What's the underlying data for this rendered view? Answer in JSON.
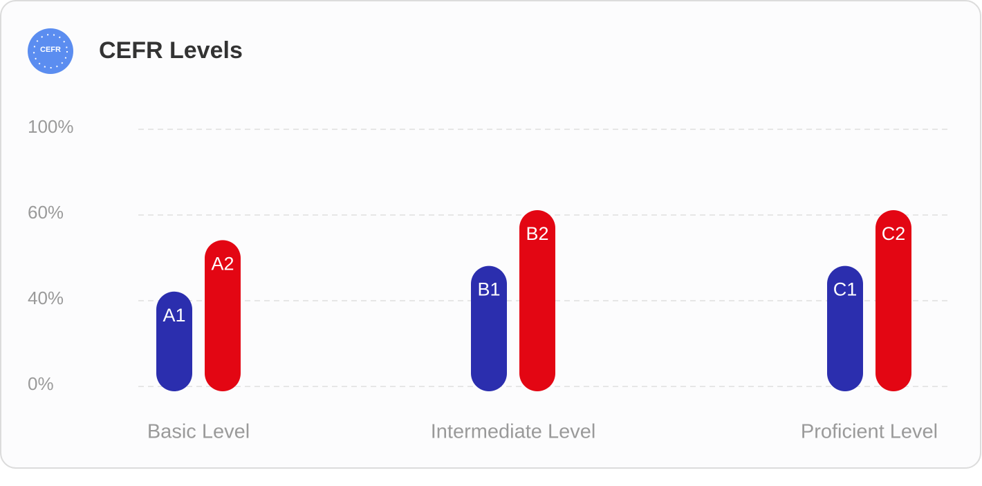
{
  "logo": {
    "text": "CEFR"
  },
  "chart_data": {
    "type": "bar",
    "title": "CEFR Levels",
    "categories": [
      "Basic Level",
      "Intermediate Level",
      "Proficient Level"
    ],
    "series": [
      {
        "color": "#2b2eae",
        "values": [
          41,
          47,
          47
        ],
        "labels": [
          "A1",
          "B1",
          "C1"
        ]
      },
      {
        "color": "#e30613",
        "values": [
          53,
          60,
          60
        ],
        "labels": [
          "A2",
          "B2",
          "C2"
        ]
      }
    ],
    "ylim": [
      0,
      100
    ],
    "yticks": [
      {
        "value": 0,
        "label": "0%"
      },
      {
        "value": 40,
        "label": "40%"
      },
      {
        "value": 60,
        "label": "60%"
      },
      {
        "value": 100,
        "label": "100%"
      }
    ],
    "grid": true
  }
}
